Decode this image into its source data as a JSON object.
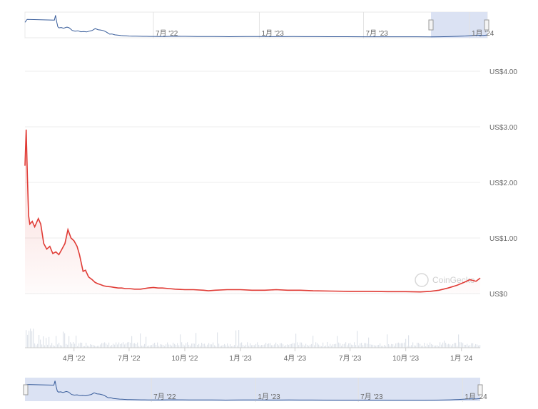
{
  "chart_data": {
    "type": "area",
    "title": "",
    "xlabel": "",
    "ylabel": "",
    "currency_prefix": "US$",
    "x_start": "2022-01-10",
    "x_end": "2024-02-01",
    "ylim": [
      0,
      4
    ],
    "y_ticks": [
      {
        "value": 0,
        "label": "US$0"
      },
      {
        "value": 1,
        "label": "US$1.00"
      },
      {
        "value": 2,
        "label": "US$2.00"
      },
      {
        "value": 3,
        "label": "US$3.00"
      },
      {
        "value": 4,
        "label": "US$4.00"
      }
    ],
    "x_ticks": [
      {
        "date": "2022-04-01",
        "label": "4月 '22"
      },
      {
        "date": "2022-07-01",
        "label": "7月 '22"
      },
      {
        "date": "2022-10-01",
        "label": "10月 '22"
      },
      {
        "date": "2023-01-01",
        "label": "1月 '23"
      },
      {
        "date": "2023-04-01",
        "label": "4月 '23"
      },
      {
        "date": "2023-07-01",
        "label": "7月 '23"
      },
      {
        "date": "2023-10-01",
        "label": "10月 '23"
      },
      {
        "date": "2024-01-01",
        "label": "1月 '24"
      }
    ],
    "grid": true,
    "legend": "none",
    "watermark": "CoinGecko",
    "line_color": "#e03b35",
    "volume_color": "#dfe3ea",
    "series": [
      {
        "x": [
          "2022-01-10",
          "2022-01-12",
          "2022-01-14",
          "2022-01-16",
          "2022-01-18",
          "2022-01-22",
          "2022-01-26",
          "2022-02-01",
          "2022-02-05",
          "2022-02-10",
          "2022-02-15",
          "2022-02-20",
          "2022-02-25",
          "2022-03-02",
          "2022-03-07",
          "2022-03-12",
          "2022-03-17",
          "2022-03-22",
          "2022-03-27",
          "2022-04-01",
          "2022-04-06",
          "2022-04-10",
          "2022-04-13",
          "2022-04-16",
          "2022-04-20",
          "2022-04-25",
          "2022-05-01",
          "2022-05-06",
          "2022-05-10",
          "2022-05-15",
          "2022-05-20",
          "2022-05-25",
          "2022-06-01",
          "2022-06-07",
          "2022-06-13",
          "2022-06-19",
          "2022-06-25",
          "2022-07-01",
          "2022-07-10",
          "2022-07-20",
          "2022-08-01",
          "2022-08-10",
          "2022-08-18",
          "2022-08-25",
          "2022-09-05",
          "2022-09-15",
          "2022-10-01",
          "2022-10-15",
          "2022-11-01",
          "2022-11-09",
          "2022-11-20",
          "2022-12-10",
          "2023-01-01",
          "2023-01-20",
          "2023-02-10",
          "2023-03-01",
          "2023-03-20",
          "2023-04-10",
          "2023-05-01",
          "2023-06-01",
          "2023-07-01",
          "2023-08-01",
          "2023-09-01",
          "2023-10-01",
          "2023-10-25",
          "2023-11-10",
          "2023-11-25",
          "2023-12-10",
          "2023-12-25",
          "2024-01-05",
          "2024-01-15",
          "2024-01-25",
          "2024-02-01"
        ],
        "y": [
          2.3,
          2.95,
          2.1,
          1.4,
          1.25,
          1.3,
          1.2,
          1.35,
          1.25,
          0.9,
          0.8,
          0.85,
          0.72,
          0.75,
          0.7,
          0.8,
          0.9,
          1.15,
          1.0,
          0.95,
          0.85,
          0.7,
          0.55,
          0.4,
          0.42,
          0.3,
          0.25,
          0.2,
          0.18,
          0.16,
          0.14,
          0.13,
          0.12,
          0.11,
          0.1,
          0.1,
          0.09,
          0.09,
          0.08,
          0.08,
          0.1,
          0.11,
          0.1,
          0.1,
          0.09,
          0.08,
          0.07,
          0.07,
          0.06,
          0.05,
          0.06,
          0.07,
          0.07,
          0.06,
          0.06,
          0.07,
          0.06,
          0.06,
          0.05,
          0.045,
          0.04,
          0.04,
          0.035,
          0.035,
          0.03,
          0.04,
          0.06,
          0.1,
          0.15,
          0.2,
          0.25,
          0.22,
          0.28
        ]
      }
    ]
  },
  "navigator_top": {
    "labels": [
      "7月 '22",
      "1月 '23",
      "7月 '23",
      "1月 '24"
    ]
  },
  "navigator_bottom": {
    "labels": [
      "7月 '22",
      "1月 '23",
      "7月 '23",
      "1月 '24"
    ]
  }
}
